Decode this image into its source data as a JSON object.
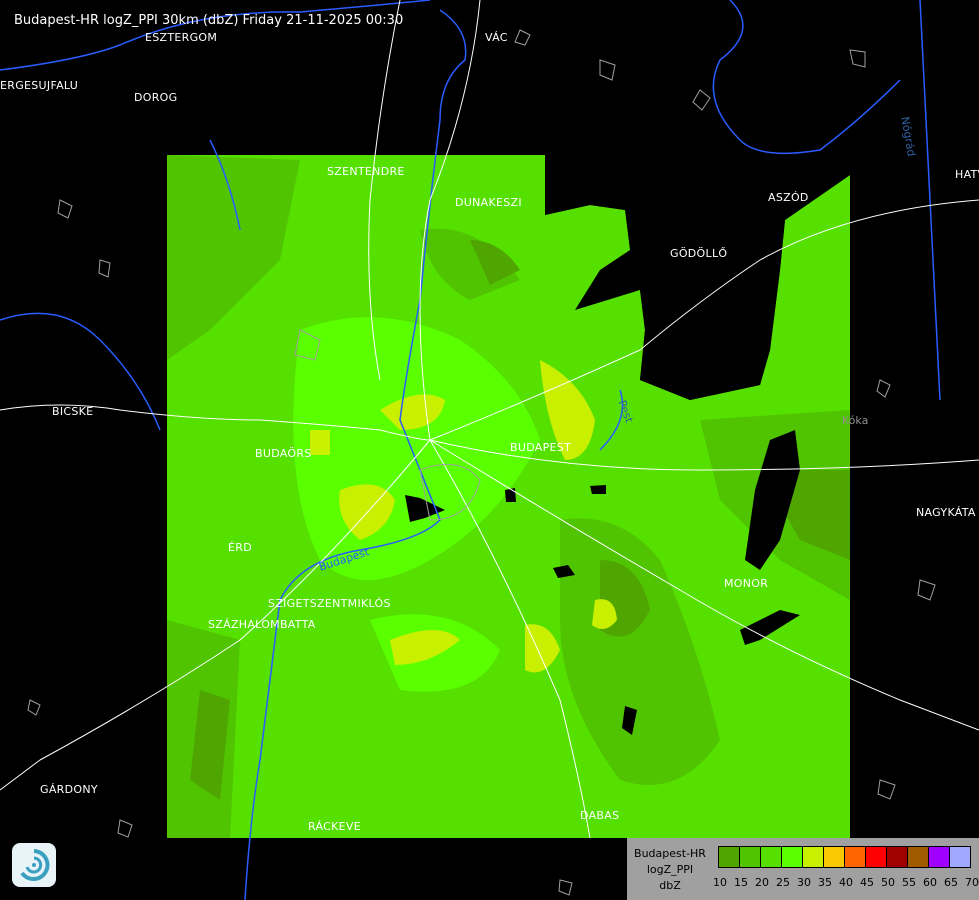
{
  "title": "Budapest-HR logZ_PPI 30km (dbZ) Friday 21-11-2025 00:30",
  "towns": [
    {
      "name": "ESZTERGOM",
      "cls": "t1"
    },
    {
      "name": "ERGESUJFALU",
      "cls": "t2"
    },
    {
      "name": "DOROG",
      "cls": "t3"
    },
    {
      "name": "VÁC",
      "cls": "t4"
    },
    {
      "name": "SZENTENDRE",
      "cls": "t5"
    },
    {
      "name": "DUNAKESZI",
      "cls": "t6"
    },
    {
      "name": "GÖDÖLLŐ",
      "cls": "t7"
    },
    {
      "name": "ASZÓD",
      "cls": "t8"
    },
    {
      "name": "HATV",
      "cls": "t9"
    },
    {
      "name": "BICSKE",
      "cls": "t10"
    },
    {
      "name": "BUDAÖRS",
      "cls": "t11"
    },
    {
      "name": "BUDAPEST",
      "cls": "t12"
    },
    {
      "name": "ÉRD",
      "cls": "t13"
    },
    {
      "name": "SZIGETSZENTMIKLÓS",
      "cls": "t14"
    },
    {
      "name": "SZÁZHALOMBATTA",
      "cls": "t15"
    },
    {
      "name": "MONOR",
      "cls": "t16"
    },
    {
      "name": "NAGYKÁTA",
      "cls": "t17"
    },
    {
      "name": "GÁRDONY",
      "cls": "t18"
    },
    {
      "name": "RÁCKEVE",
      "cls": "t19"
    },
    {
      "name": "DABAS",
      "cls": "t20"
    }
  ],
  "water_labels": {
    "danube": "Budapest",
    "pest": "Pest",
    "nograd": "Nógrád",
    "koka": "Kóka"
  },
  "legend": {
    "line1": "Budapest-HR",
    "line2": "logZ_PPI",
    "line3": "dbZ",
    "ticks": [
      "10",
      "15",
      "20",
      "25",
      "30",
      "35",
      "40",
      "45",
      "50",
      "55",
      "60",
      "65",
      "70"
    ],
    "colors": [
      "#4fa600",
      "#50c400",
      "#55e000",
      "#5aff00",
      "#c8f000",
      "#f8c800",
      "#ff6400",
      "#ff0000",
      "#a00000",
      "#a05a00",
      "#a000ff",
      "#a0a8ff"
    ]
  },
  "colors": {
    "background": "#000000",
    "base_echo": "#55e000",
    "water": "#2a5cff",
    "roads": "#ffffff",
    "borders": "#a0a0a0"
  }
}
